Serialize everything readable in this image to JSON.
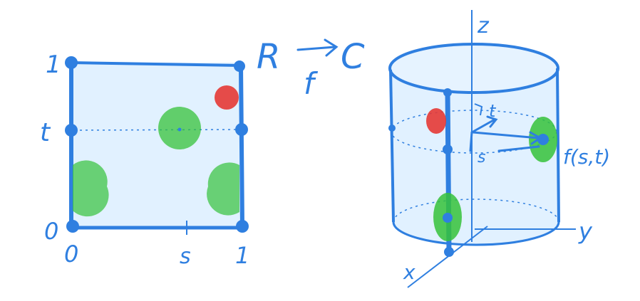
{
  "square": {
    "corner_top_left": "1",
    "left_middle": "t",
    "bottom_left_row": "0",
    "bottom_left_col": "0",
    "bottom_middle": "s",
    "bottom_right": "1"
  },
  "mapping": {
    "domain": "R",
    "codomain": "C",
    "function": "f"
  },
  "cylinder": {
    "axis_z": "z",
    "axis_y": "y",
    "axis_x": "x",
    "inner_t": "t",
    "inner_s": "s",
    "point_label": "f(s,t)"
  },
  "colors": {
    "ink": "#2f7fe0",
    "fill": "#dcefff",
    "green": "#35c23a",
    "red": "#e53935"
  }
}
